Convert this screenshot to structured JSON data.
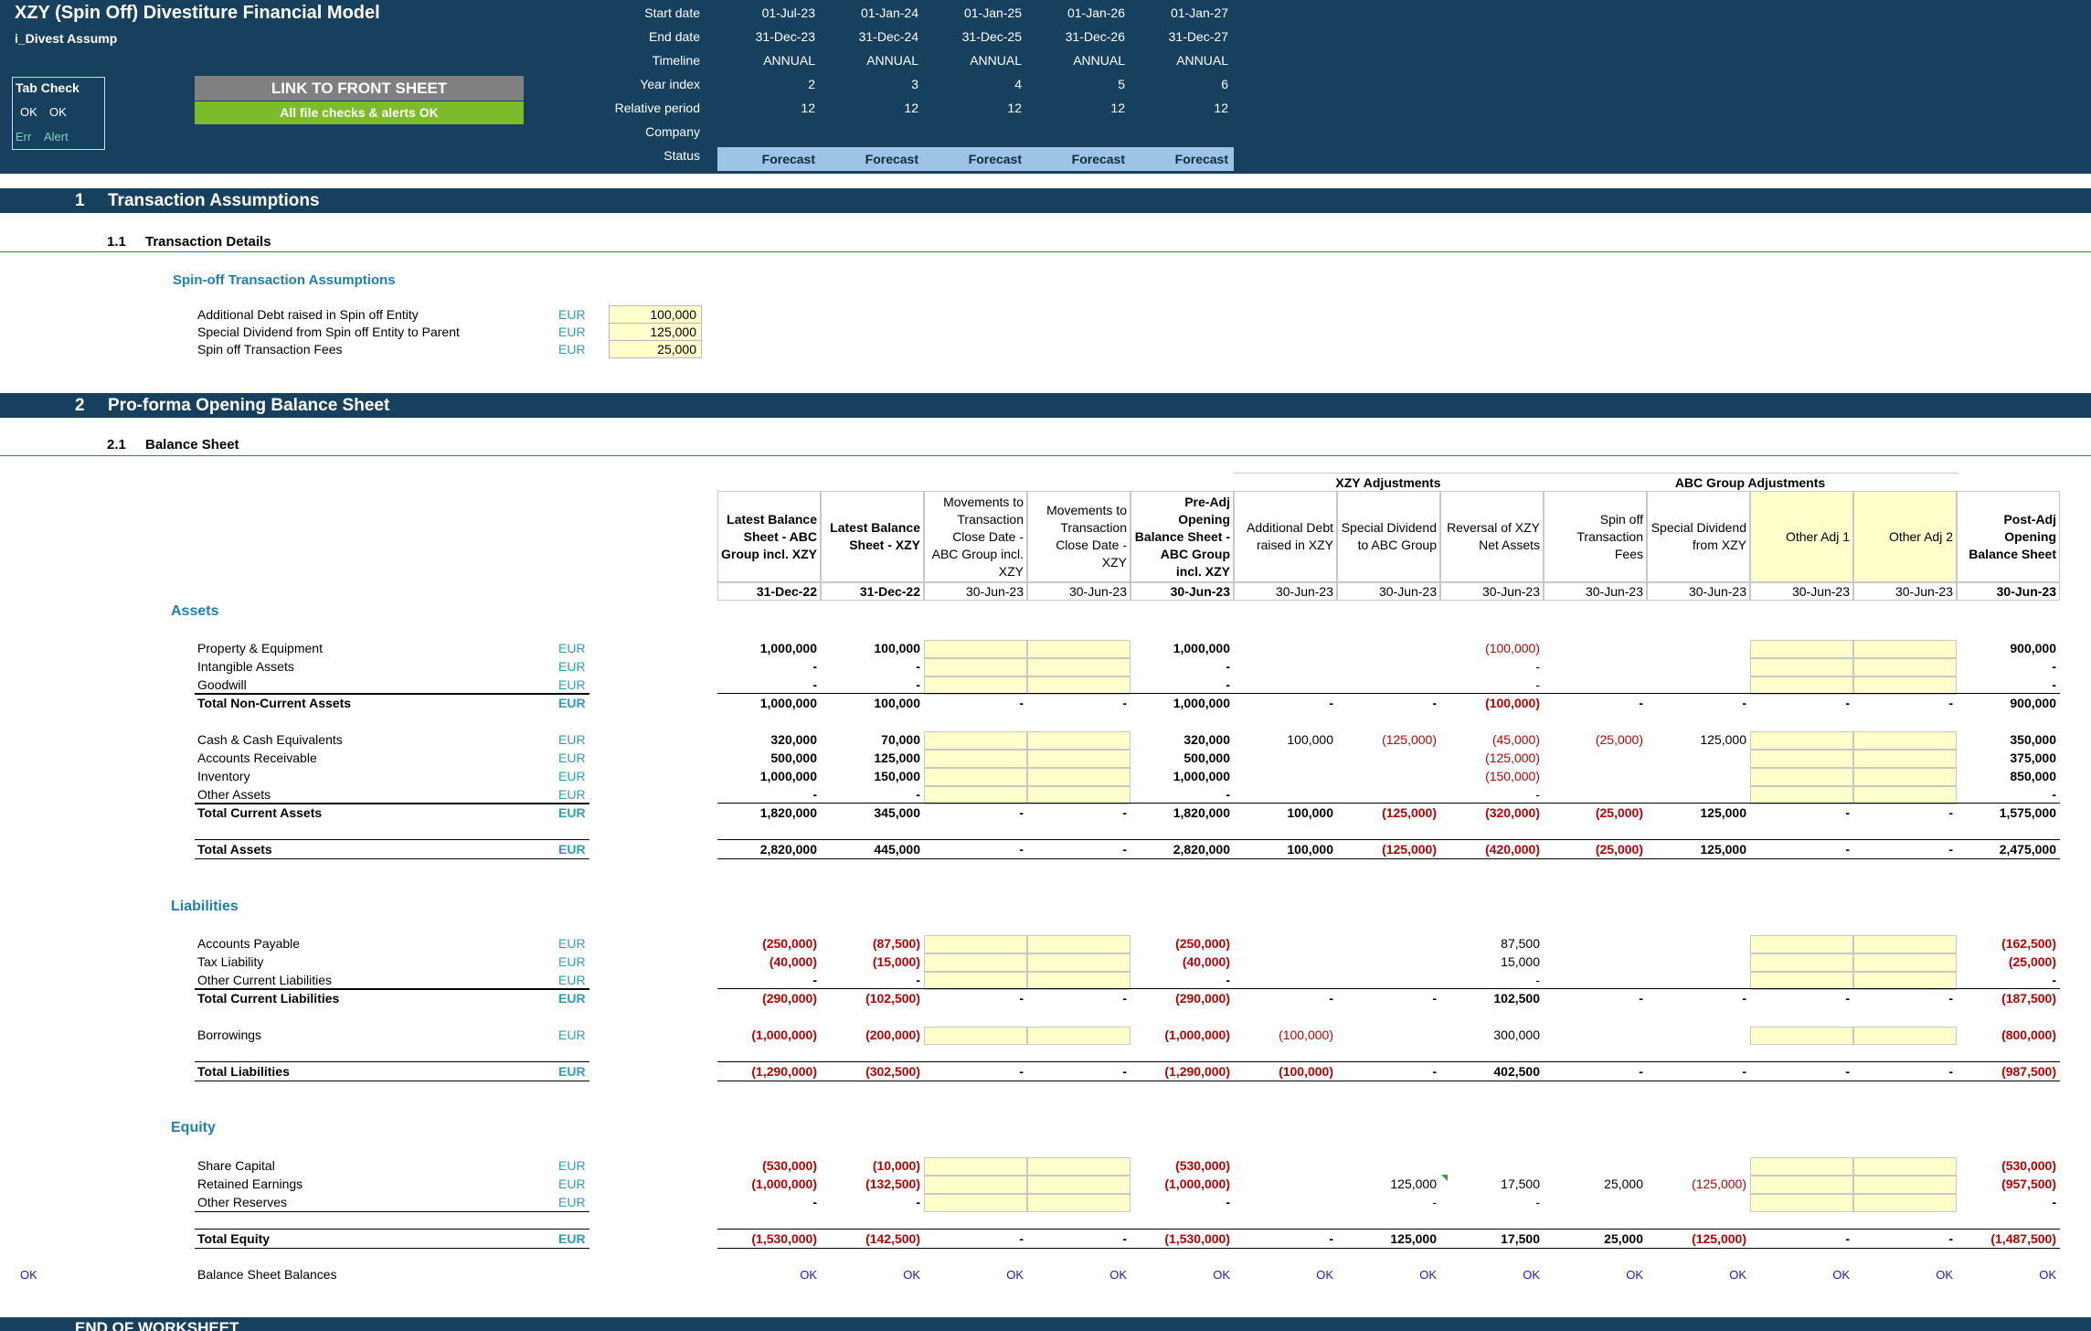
{
  "header": {
    "title": "XZY (Spin Off) Divestiture Financial Model",
    "sheet": "i_Divest Assump",
    "tab_check": "Tab Check",
    "tab_check_ok1": "OK",
    "tab_check_ok2": "OK",
    "legend_err": "Err",
    "legend_alert": "Alert",
    "link_button": "LINK TO FRONT SHEET",
    "checks_status": "All file checks & alerts OK"
  },
  "timeline": {
    "labels": [
      "Start date",
      "End date",
      "Timeline",
      "Year index",
      "Relative period",
      "Company",
      "Status"
    ],
    "start_dates": [
      "01-Jul-23",
      "01-Jan-24",
      "01-Jan-25",
      "01-Jan-26",
      "01-Jan-27"
    ],
    "end_dates": [
      "31-Dec-23",
      "31-Dec-24",
      "31-Dec-25",
      "31-Dec-26",
      "31-Dec-27"
    ],
    "timeline": [
      "ANNUAL",
      "ANNUAL",
      "ANNUAL",
      "ANNUAL",
      "ANNUAL"
    ],
    "year_index": [
      "2",
      "3",
      "4",
      "5",
      "6"
    ],
    "relative_period": [
      "12",
      "12",
      "12",
      "12",
      "12"
    ],
    "status": [
      "Forecast",
      "Forecast",
      "Forecast",
      "Forecast",
      "Forecast"
    ]
  },
  "sections": {
    "s1_num": "1",
    "s1_title": "Transaction Assumptions",
    "s11_num": "1.1",
    "s11_title": "Transaction Details",
    "s2_num": "2",
    "s2_title": "Pro-forma Opening Balance Sheet",
    "s21_num": "2.1",
    "s21_title": "Balance Sheet",
    "end": "END OF WORKSHEET"
  },
  "transaction": {
    "subtitle": "Spin-off Transaction Assumptions",
    "rows": [
      {
        "label": "Additional Debt raised in Spin off Entity",
        "unit": "EUR",
        "value": "100,000"
      },
      {
        "label": "Special Dividend from Spin off Entity to Parent",
        "unit": "EUR",
        "value": "125,000"
      },
      {
        "label": "Spin off Transaction Fees",
        "unit": "EUR",
        "value": "25,000"
      }
    ]
  },
  "balance_sheet": {
    "group_xzy": "XZY Adjustments",
    "group_abc": "ABC Group Adjustments",
    "col_headers": [
      "Latest Balance Sheet - ABC Group incl. XZY",
      "Latest Balance Sheet - XZY",
      "Movements to Transaction Close Date - ABC Group incl. XZY",
      "Movements to Transaction Close Date - XZY",
      "Pre-Adj Opening Balance Sheet - ABC Group incl. XZY",
      "Additional Debt raised in XZY",
      "Special Dividend to ABC Group",
      "Reversal of XZY Net Assets",
      "Spin off Transaction Fees",
      "Special Dividend from XZY",
      "Other Adj 1",
      "Other Adj 2",
      "Post-Adj Opening Balance Sheet"
    ],
    "col_dates": [
      "31-Dec-22",
      "31-Dec-22",
      "30-Jun-23",
      "30-Jun-23",
      "30-Jun-23",
      "30-Jun-23",
      "30-Jun-23",
      "30-Jun-23",
      "30-Jun-23",
      "30-Jun-23",
      "30-Jun-23",
      "30-Jun-23",
      "30-Jun-23"
    ],
    "assets_title": "Assets",
    "liabilities_title": "Liabilities",
    "equity_title": "Equity",
    "unit": "EUR",
    "rows": [
      {
        "label": "Property & Equipment",
        "vals": [
          "1,000,000",
          "100,000",
          "",
          "",
          "1,000,000",
          "",
          "",
          "(100,000)",
          "",
          "",
          "",
          "",
          "900,000"
        ]
      },
      {
        "label": "Intangible Assets",
        "vals": [
          "-",
          "-",
          "",
          "",
          "-",
          "",
          "",
          "-",
          "",
          "",
          "",
          "",
          "-"
        ]
      },
      {
        "label": "Goodwill",
        "vals": [
          "-",
          "-",
          "",
          "",
          "-",
          "",
          "",
          "-",
          "",
          "",
          "",
          "",
          "-"
        ]
      },
      {
        "label": "Total Non-Current Assets",
        "vals": [
          "1,000,000",
          "100,000",
          "-",
          "-",
          "1,000,000",
          "-",
          "-",
          "(100,000)",
          "-",
          "-",
          "-",
          "-",
          "900,000"
        ]
      },
      {
        "label": "Cash & Cash Equivalents",
        "vals": [
          "320,000",
          "70,000",
          "",
          "",
          "320,000",
          "100,000",
          "(125,000)",
          "(45,000)",
          "(25,000)",
          "125,000",
          "",
          "",
          "350,000"
        ]
      },
      {
        "label": "Accounts Receivable",
        "vals": [
          "500,000",
          "125,000",
          "",
          "",
          "500,000",
          "",
          "",
          "(125,000)",
          "",
          "",
          "",
          "",
          "375,000"
        ]
      },
      {
        "label": "Inventory",
        "vals": [
          "1,000,000",
          "150,000",
          "",
          "",
          "1,000,000",
          "",
          "",
          "(150,000)",
          "",
          "",
          "",
          "",
          "850,000"
        ]
      },
      {
        "label": "Other Assets",
        "vals": [
          "-",
          "-",
          "",
          "",
          "-",
          "",
          "",
          "-",
          "",
          "",
          "",
          "",
          "-"
        ]
      },
      {
        "label": "Total Current Assets",
        "vals": [
          "1,820,000",
          "345,000",
          "-",
          "-",
          "1,820,000",
          "100,000",
          "(125,000)",
          "(320,000)",
          "(25,000)",
          "125,000",
          "-",
          "-",
          "1,575,000"
        ]
      },
      {
        "label": "Total Assets",
        "vals": [
          "2,820,000",
          "445,000",
          "-",
          "-",
          "2,820,000",
          "100,000",
          "(125,000)",
          "(420,000)",
          "(25,000)",
          "125,000",
          "-",
          "-",
          "2,475,000"
        ]
      },
      {
        "label": "Accounts Payable",
        "vals": [
          "(250,000)",
          "(87,500)",
          "",
          "",
          "(250,000)",
          "",
          "",
          "87,500",
          "",
          "",
          "",
          "",
          "(162,500)"
        ]
      },
      {
        "label": "Tax Liability",
        "vals": [
          "(40,000)",
          "(15,000)",
          "",
          "",
          "(40,000)",
          "",
          "",
          "15,000",
          "",
          "",
          "",
          "",
          "(25,000)"
        ]
      },
      {
        "label": "Other Current Liabilities",
        "vals": [
          "-",
          "-",
          "",
          "",
          "-",
          "",
          "",
          "-",
          "",
          "",
          "",
          "",
          "-"
        ]
      },
      {
        "label": "Total Current Liabilities",
        "vals": [
          "(290,000)",
          "(102,500)",
          "-",
          "-",
          "(290,000)",
          "-",
          "-",
          "102,500",
          "-",
          "-",
          "-",
          "-",
          "(187,500)"
        ]
      },
      {
        "label": "Borrowings",
        "vals": [
          "(1,000,000)",
          "(200,000)",
          "",
          "",
          "(1,000,000)",
          "(100,000)",
          "",
          "300,000",
          "",
          "",
          "",
          "",
          "(800,000)"
        ]
      },
      {
        "label": "Total Liabilities",
        "vals": [
          "(1,290,000)",
          "(302,500)",
          "-",
          "-",
          "(1,290,000)",
          "(100,000)",
          "-",
          "402,500",
          "-",
          "-",
          "-",
          "-",
          "(987,500)"
        ]
      },
      {
        "label": "Share Capital",
        "vals": [
          "(530,000)",
          "(10,000)",
          "",
          "",
          "(530,000)",
          "",
          "",
          "",
          "",
          "",
          "",
          "",
          "(530,000)"
        ]
      },
      {
        "label": "Retained Earnings",
        "vals": [
          "(1,000,000)",
          "(132,500)",
          "",
          "",
          "(1,000,000)",
          "",
          "125,000",
          "17,500",
          "25,000",
          "(125,000)",
          "",
          "",
          "(957,500)"
        ]
      },
      {
        "label": "Other Reserves",
        "vals": [
          "-",
          "-",
          "",
          "",
          "-",
          "",
          "-",
          "-",
          "",
          "",
          "",
          "",
          "-"
        ]
      },
      {
        "label": "Total Equity",
        "vals": [
          "(1,530,000)",
          "(142,500)",
          "-",
          "-",
          "(1,530,000)",
          "-",
          "125,000",
          "17,500",
          "25,000",
          "(125,000)",
          "-",
          "-",
          "(1,487,500)"
        ]
      }
    ],
    "check_label": "Balance Sheet Balances",
    "check_left": "OK",
    "checks": [
      "OK",
      "OK",
      "OK",
      "OK",
      "OK",
      "OK",
      "OK",
      "OK",
      "OK",
      "OK",
      "OK",
      "OK",
      "OK"
    ]
  }
}
